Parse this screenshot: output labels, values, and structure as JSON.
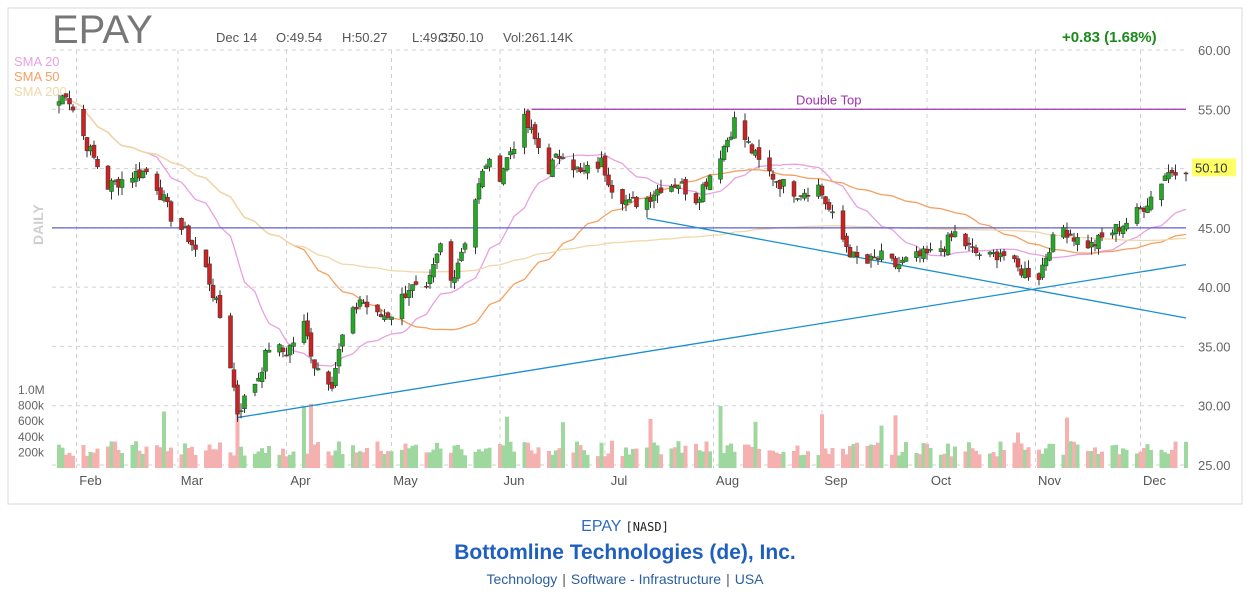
{
  "chart_data": {
    "type": "candlestick",
    "ticker": "EPAY",
    "header": {
      "date": "Dec 14",
      "open": "O:49.54",
      "high": "H:50.27",
      "low": "L:49.37",
      "close": "C:50.10",
      "volume": "Vol:261.14K",
      "change": "+0.83 (1.68%)"
    },
    "period_label": "DAILY",
    "legend": [
      {
        "name": "SMA 20",
        "color": "#e8a0e0"
      },
      {
        "name": "SMA 50",
        "color": "#f4a060"
      },
      {
        "name": "SMA 200",
        "color": "#f0d8a8"
      }
    ],
    "ylim": [
      25,
      60
    ],
    "y_ticks": [
      "25.00",
      "30.00",
      "35.00",
      "40.00",
      "45.00",
      "50.00",
      "55.00",
      "60.00"
    ],
    "x_labels": [
      "Feb",
      "Mar",
      "Apr",
      "May",
      "Jun",
      "Jul",
      "Aug",
      "Sep",
      "Oct",
      "Nov",
      "Dec"
    ],
    "x_date_range": [
      "Jan 25",
      "Dec 14"
    ],
    "volume_labels": [
      "1.0M",
      "800k",
      "600k",
      "400k",
      "200k"
    ],
    "volume_max": 1000000,
    "last_price": "50.10",
    "close_path": [
      [
        "Jan 25",
        54.8
      ],
      [
        "Jan 29",
        56.5
      ],
      [
        "Feb 4",
        52.0
      ],
      [
        "Feb 10",
        48.5
      ],
      [
        "Feb 17",
        49.5
      ],
      [
        "Feb 22",
        49.8
      ],
      [
        "Feb 28",
        46.0
      ],
      [
        "Mar 4",
        44.2
      ],
      [
        "Mar 9",
        41.5
      ],
      [
        "Mar 13",
        37.5
      ],
      [
        "Mar 16",
        33.5
      ],
      [
        "Mar 18",
        29.5
      ],
      [
        "Mar 20",
        30.5
      ],
      [
        "Mar 24",
        32.5
      ],
      [
        "Mar 27",
        35.0
      ],
      [
        "Apr 1",
        34.5
      ],
      [
        "Apr 6",
        36.8
      ],
      [
        "Apr 9",
        33.5
      ],
      [
        "Apr 14",
        32.0
      ],
      [
        "Apr 17",
        35.8
      ],
      [
        "Apr 22",
        39.0
      ],
      [
        "Apr 27",
        37.5
      ],
      [
        "May 1",
        37.8
      ],
      [
        "May 6",
        40.0
      ],
      [
        "May 11",
        39.5
      ],
      [
        "May 13",
        41.5
      ],
      [
        "May 15",
        43.5
      ],
      [
        "May 18",
        40.5
      ],
      [
        "May 22",
        44.0
      ],
      [
        "May 25",
        47.5
      ],
      [
        "May 28",
        50.5
      ],
      [
        "Jun 1",
        49.5
      ],
      [
        "Jun 4",
        51.5
      ],
      [
        "Jun 8",
        54.0
      ],
      [
        "Jun 10",
        53.0
      ],
      [
        "Jun 15",
        50.0
      ],
      [
        "Jun 19",
        51.5
      ],
      [
        "Jun 24",
        49.5
      ],
      [
        "Jun 30",
        50.5
      ],
      [
        "Jul 3",
        48.5
      ],
      [
        "Jul 8",
        47.0
      ],
      [
        "Jul 13",
        47.5
      ],
      [
        "Jul 17",
        48.5
      ],
      [
        "Jul 22",
        48.8
      ],
      [
        "Jul 27",
        47.5
      ],
      [
        "Jul 31",
        49.5
      ],
      [
        "Aug 5",
        52.5
      ],
      [
        "Aug 7",
        54.0
      ],
      [
        "Aug 11",
        52.0
      ],
      [
        "Aug 14",
        50.5
      ],
      [
        "Aug 20",
        48.8
      ],
      [
        "Aug 25",
        48.0
      ],
      [
        "Aug 31",
        48.5
      ],
      [
        "Sep 3",
        46.5
      ],
      [
        "Sep 7",
        44.0
      ],
      [
        "Sep 10",
        42.5
      ],
      [
        "Sep 14",
        42.0
      ],
      [
        "Sep 18",
        42.5
      ],
      [
        "Sep 22",
        41.8
      ],
      [
        "Sep 28",
        42.5
      ],
      [
        "Oct 2",
        42.8
      ],
      [
        "Oct 6",
        43.5
      ],
      [
        "Oct 9",
        44.5
      ],
      [
        "Oct 14",
        43.0
      ],
      [
        "Oct 19",
        42.5
      ],
      [
        "Oct 22",
        43.0
      ],
      [
        "Oct 27",
        41.5
      ],
      [
        "Nov 2",
        41.0
      ],
      [
        "Nov 5",
        43.5
      ],
      [
        "Nov 9",
        45.0
      ],
      [
        "Nov 13",
        44.0
      ],
      [
        "Nov 17",
        43.5
      ],
      [
        "Nov 22",
        44.5
      ],
      [
        "Nov 27",
        45.5
      ],
      [
        "Dec 1",
        46.5
      ],
      [
        "Dec 5",
        48.0
      ],
      [
        "Dec 8",
        49.5
      ],
      [
        "Dec 11",
        50.0
      ],
      [
        "Dec 14",
        50.1
      ]
    ],
    "sma_note": "SMA curves shown as in the chart",
    "horizontal_levels": [
      {
        "value": 55.0,
        "color": "#a030b0",
        "label": "Double Top"
      },
      {
        "value": 45.0,
        "color": "#6060d0",
        "label": ""
      }
    ],
    "trendlines": [
      {
        "from": [
          "Mar 18",
          29.0
        ],
        "to": [
          "Dec 14",
          41.9
        ],
        "color": "#1a8fd0"
      },
      {
        "from": [
          "Jul 13",
          45.8
        ],
        "to": [
          "Dec 14",
          37.4
        ],
        "color": "#1a8fd0"
      }
    ]
  },
  "footer": {
    "ticker": "EPAY",
    "exchange": "[NASD]",
    "company": "Bottomline Technologies (de), Inc.",
    "sector": "Technology",
    "industry": "Software - Infrastructure",
    "country": "USA"
  },
  "colors": {
    "up": "#22aa22",
    "down": "#cc2222",
    "vol_up": "#9fd89f",
    "vol_down": "#f5b0b0",
    "grid": "#cccccc",
    "change": "#1a8a1a"
  }
}
